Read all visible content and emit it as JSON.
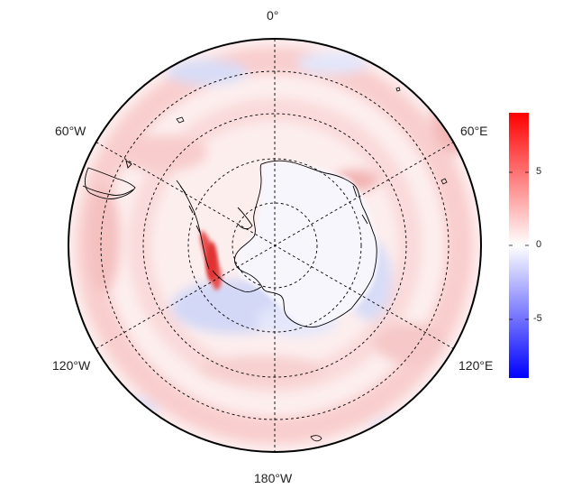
{
  "map": {
    "projection": "south-polar-stereographic",
    "longitude_labels": {
      "top": "0°",
      "upper_left": "60°W",
      "upper_right": "60°E",
      "lower_left": "120°W",
      "lower_right": "120°E",
      "bottom": "180°W"
    },
    "graticule": "dashed",
    "coastline_color": "#000000",
    "field_description_colors": {
      "positive": "#ff0000",
      "zero": "#ffffff",
      "negative": "#0000ff"
    }
  },
  "colorbar": {
    "range": [
      -9,
      9
    ],
    "ticks": [
      "5",
      "0",
      "-5"
    ],
    "tick_values": [
      5,
      0,
      -5
    ],
    "colors": [
      "#0000ff",
      "#ffffff",
      "#ff0000"
    ]
  }
}
